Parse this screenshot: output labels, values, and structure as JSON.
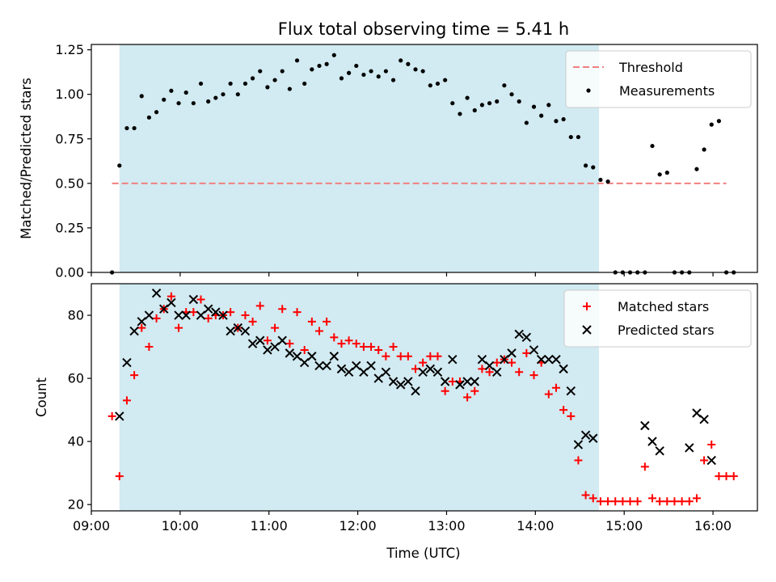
{
  "figure": {
    "title": "Flux total observing time = 5.41 h",
    "xlabel": "Time (UTC)"
  },
  "chart_data": [
    {
      "type": "scatter",
      "panel": "top",
      "ylabel": "Matched/Predicted stars",
      "xlim": [
        "09:00",
        "16:30"
      ],
      "ylim": [
        0,
        1.28
      ],
      "yticks": [
        "0.00",
        "0.25",
        "0.50",
        "0.75",
        "1.00",
        "1.25"
      ],
      "xticks": [
        "09:00",
        "10:00",
        "11:00",
        "12:00",
        "13:00",
        "14:00",
        "15:00",
        "16:00"
      ],
      "shaded_interval": [
        "09:19",
        "14:43"
      ],
      "threshold": {
        "name": "Threshold",
        "value": 0.5,
        "x_range": [
          "09:14",
          "16:09"
        ],
        "color": "#f08080"
      },
      "legend_position": "top-right",
      "series": [
        {
          "name": "Measurements",
          "color": "#000000",
          "marker": "dot",
          "points": [
            [
              "09:14",
              0.0
            ],
            [
              "09:19",
              0.6
            ],
            [
              "09:24",
              0.81
            ],
            [
              "09:29",
              0.81
            ],
            [
              "09:34",
              0.99
            ],
            [
              "09:39",
              0.87
            ],
            [
              "09:44",
              0.9
            ],
            [
              "09:49",
              0.97
            ],
            [
              "09:54",
              1.02
            ],
            [
              "09:59",
              0.95
            ],
            [
              "10:04",
              1.01
            ],
            [
              "10:09",
              0.95
            ],
            [
              "10:14",
              1.06
            ],
            [
              "10:19",
              0.96
            ],
            [
              "10:24",
              0.98
            ],
            [
              "10:29",
              1.0
            ],
            [
              "10:34",
              1.06
            ],
            [
              "10:39",
              1.0
            ],
            [
              "10:44",
              1.06
            ],
            [
              "10:49",
              1.09
            ],
            [
              "10:54",
              1.13
            ],
            [
              "10:59",
              1.04
            ],
            [
              "11:04",
              1.08
            ],
            [
              "11:09",
              1.13
            ],
            [
              "11:14",
              1.03
            ],
            [
              "11:19",
              1.19
            ],
            [
              "11:24",
              1.06
            ],
            [
              "11:29",
              1.14
            ],
            [
              "11:34",
              1.16
            ],
            [
              "11:39",
              1.17
            ],
            [
              "11:44",
              1.22
            ],
            [
              "11:49",
              1.09
            ],
            [
              "11:54",
              1.12
            ],
            [
              "11:59",
              1.16
            ],
            [
              "12:04",
              1.11
            ],
            [
              "12:09",
              1.13
            ],
            [
              "12:14",
              1.1
            ],
            [
              "12:19",
              1.13
            ],
            [
              "12:24",
              1.08
            ],
            [
              "12:29",
              1.19
            ],
            [
              "12:34",
              1.17
            ],
            [
              "12:39",
              1.14
            ],
            [
              "12:44",
              1.13
            ],
            [
              "12:49",
              1.05
            ],
            [
              "12:54",
              1.06
            ],
            [
              "12:59",
              1.08
            ],
            [
              "13:04",
              0.95
            ],
            [
              "13:09",
              0.89
            ],
            [
              "13:14",
              0.98
            ],
            [
              "13:19",
              0.91
            ],
            [
              "13:24",
              0.94
            ],
            [
              "13:29",
              0.95
            ],
            [
              "13:34",
              0.96
            ],
            [
              "13:39",
              1.05
            ],
            [
              "13:44",
              1.0
            ],
            [
              "13:49",
              0.96
            ],
            [
              "13:54",
              0.84
            ],
            [
              "13:59",
              0.93
            ],
            [
              "14:04",
              0.88
            ],
            [
              "14:09",
              0.94
            ],
            [
              "14:14",
              0.85
            ],
            [
              "14:19",
              0.86
            ],
            [
              "14:24",
              0.76
            ],
            [
              "14:29",
              0.76
            ],
            [
              "14:34",
              0.6
            ],
            [
              "14:39",
              0.59
            ],
            [
              "14:44",
              0.52
            ],
            [
              "14:49",
              0.51
            ],
            [
              "14:54",
              0.0
            ],
            [
              "14:59",
              0.0
            ],
            [
              "15:04",
              0.0
            ],
            [
              "15:09",
              0.0
            ],
            [
              "15:14",
              0.0
            ],
            [
              "15:19",
              0.71
            ],
            [
              "15:24",
              0.55
            ],
            [
              "15:29",
              0.56
            ],
            [
              "15:34",
              0.0
            ],
            [
              "15:39",
              0.0
            ],
            [
              "15:44",
              0.0
            ],
            [
              "15:49",
              0.58
            ],
            [
              "15:54",
              0.69
            ],
            [
              "15:59",
              0.83
            ],
            [
              "16:04",
              0.85
            ],
            [
              "16:09",
              0.0
            ],
            [
              "16:14",
              0.0
            ]
          ]
        }
      ]
    },
    {
      "type": "scatter",
      "panel": "bottom",
      "ylabel": "Count",
      "xlim": [
        "09:00",
        "16:30"
      ],
      "ylim": [
        18,
        90
      ],
      "yticks": [
        "20",
        "40",
        "60",
        "80"
      ],
      "xticks": [
        "09:00",
        "10:00",
        "11:00",
        "12:00",
        "13:00",
        "14:00",
        "15:00",
        "16:00"
      ],
      "shaded_interval": [
        "09:19",
        "14:43"
      ],
      "legend_position": "top-right",
      "series": [
        {
          "name": "Matched stars",
          "color": "#ff0000",
          "marker": "plus",
          "points": [
            [
              "09:14",
              48
            ],
            [
              "09:19",
              29
            ],
            [
              "09:24",
              53
            ],
            [
              "09:29",
              61
            ],
            [
              "09:34",
              76
            ],
            [
              "09:39",
              70
            ],
            [
              "09:44",
              79
            ],
            [
              "09:49",
              82
            ],
            [
              "09:54",
              86
            ],
            [
              "09:59",
              76
            ],
            [
              "10:04",
              81
            ],
            [
              "10:09",
              81
            ],
            [
              "10:14",
              85
            ],
            [
              "10:19",
              79
            ],
            [
              "10:24",
              80
            ],
            [
              "10:29",
              80
            ],
            [
              "10:34",
              81
            ],
            [
              "10:39",
              76
            ],
            [
              "10:44",
              80
            ],
            [
              "10:49",
              78
            ],
            [
              "10:54",
              83
            ],
            [
              "10:59",
              72
            ],
            [
              "11:04",
              76
            ],
            [
              "11:09",
              82
            ],
            [
              "11:14",
              71
            ],
            [
              "11:19",
              81
            ],
            [
              "11:24",
              69
            ],
            [
              "11:29",
              78
            ],
            [
              "11:34",
              75
            ],
            [
              "11:39",
              78
            ],
            [
              "11:44",
              73
            ],
            [
              "11:49",
              71
            ],
            [
              "11:54",
              72
            ],
            [
              "11:59",
              71
            ],
            [
              "12:04",
              70
            ],
            [
              "12:09",
              70
            ],
            [
              "12:14",
              69
            ],
            [
              "12:19",
              67
            ],
            [
              "12:24",
              70
            ],
            [
              "12:29",
              67
            ],
            [
              "12:34",
              67
            ],
            [
              "12:39",
              63
            ],
            [
              "12:44",
              65
            ],
            [
              "12:49",
              67
            ],
            [
              "12:54",
              67
            ],
            [
              "12:59",
              56
            ],
            [
              "13:04",
              59
            ],
            [
              "13:09",
              59
            ],
            [
              "13:14",
              54
            ],
            [
              "13:19",
              56
            ],
            [
              "13:24",
              63
            ],
            [
              "13:29",
              62
            ],
            [
              "13:34",
              65
            ],
            [
              "13:39",
              66
            ],
            [
              "13:44",
              65
            ],
            [
              "13:49",
              62
            ],
            [
              "13:54",
              68
            ],
            [
              "13:59",
              61
            ],
            [
              "14:04",
              65
            ],
            [
              "14:09",
              55
            ],
            [
              "14:14",
              57
            ],
            [
              "14:19",
              50
            ],
            [
              "14:24",
              48
            ],
            [
              "14:29",
              34
            ],
            [
              "14:34",
              23
            ],
            [
              "14:39",
              22
            ],
            [
              "14:44",
              21
            ],
            [
              "14:49",
              21
            ],
            [
              "14:54",
              21
            ],
            [
              "14:59",
              21
            ],
            [
              "15:04",
              21
            ],
            [
              "15:09",
              21
            ],
            [
              "15:14",
              32
            ],
            [
              "15:19",
              22
            ],
            [
              "15:24",
              21
            ],
            [
              "15:29",
              21
            ],
            [
              "15:34",
              21
            ],
            [
              "15:39",
              21
            ],
            [
              "15:44",
              21
            ],
            [
              "15:49",
              22
            ],
            [
              "15:54",
              34
            ],
            [
              "15:59",
              39
            ],
            [
              "16:04",
              29
            ],
            [
              "16:09",
              29
            ],
            [
              "16:14",
              29
            ]
          ]
        },
        {
          "name": "Predicted stars",
          "color": "#000000",
          "marker": "x",
          "points": [
            [
              "09:19",
              48
            ],
            [
              "09:24",
              65
            ],
            [
              "09:29",
              75
            ],
            [
              "09:34",
              78
            ],
            [
              "09:39",
              80
            ],
            [
              "09:44",
              87
            ],
            [
              "09:49",
              82
            ],
            [
              "09:54",
              84
            ],
            [
              "09:59",
              80
            ],
            [
              "10:04",
              80
            ],
            [
              "10:09",
              85
            ],
            [
              "10:14",
              80
            ],
            [
              "10:19",
              82
            ],
            [
              "10:24",
              81
            ],
            [
              "10:29",
              80
            ],
            [
              "10:34",
              75
            ],
            [
              "10:39",
              76
            ],
            [
              "10:44",
              75
            ],
            [
              "10:49",
              71
            ],
            [
              "10:54",
              72
            ],
            [
              "10:59",
              69
            ],
            [
              "11:04",
              70
            ],
            [
              "11:09",
              72
            ],
            [
              "11:14",
              68
            ],
            [
              "11:19",
              67
            ],
            [
              "11:24",
              65
            ],
            [
              "11:29",
              67
            ],
            [
              "11:34",
              64
            ],
            [
              "11:39",
              64
            ],
            [
              "11:44",
              67
            ],
            [
              "11:49",
              63
            ],
            [
              "11:54",
              62
            ],
            [
              "11:59",
              64
            ],
            [
              "12:04",
              62
            ],
            [
              "12:09",
              64
            ],
            [
              "12:14",
              60
            ],
            [
              "12:19",
              62
            ],
            [
              "12:24",
              59
            ],
            [
              "12:29",
              58
            ],
            [
              "12:34",
              59
            ],
            [
              "12:39",
              56
            ],
            [
              "12:44",
              62
            ],
            [
              "12:49",
              63
            ],
            [
              "12:54",
              62
            ],
            [
              "12:59",
              59
            ],
            [
              "13:04",
              66
            ],
            [
              "13:09",
              58
            ],
            [
              "13:14",
              59
            ],
            [
              "13:19",
              59
            ],
            [
              "13:24",
              66
            ],
            [
              "13:29",
              64
            ],
            [
              "13:34",
              62
            ],
            [
              "13:39",
              66
            ],
            [
              "13:44",
              68
            ],
            [
              "13:49",
              74
            ],
            [
              "13:54",
              73
            ],
            [
              "13:59",
              69
            ],
            [
              "14:04",
              66
            ],
            [
              "14:09",
              66
            ],
            [
              "14:14",
              66
            ],
            [
              "14:19",
              63
            ],
            [
              "14:24",
              56
            ],
            [
              "14:29",
              39
            ],
            [
              "14:34",
              42
            ],
            [
              "14:39",
              41
            ],
            [
              "15:14",
              45
            ],
            [
              "15:19",
              40
            ],
            [
              "15:24",
              37
            ],
            [
              "15:44",
              38
            ],
            [
              "15:49",
              49
            ],
            [
              "15:54",
              47
            ],
            [
              "15:59",
              34
            ]
          ]
        }
      ]
    }
  ]
}
